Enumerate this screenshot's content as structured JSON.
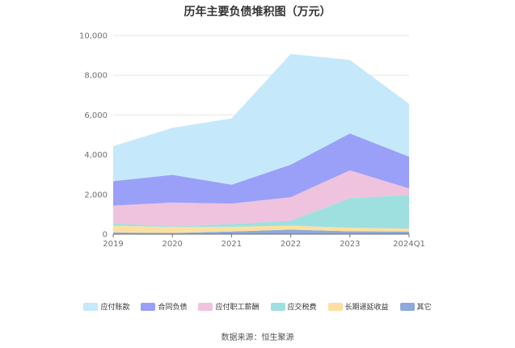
{
  "chart_data": {
    "type": "area",
    "stacked": true,
    "title": "历年主要负债堆积图（万元）",
    "categories": [
      "2019",
      "2020",
      "2021",
      "2022",
      "2023",
      "2024Q1"
    ],
    "ylim": [
      0,
      10000
    ],
    "yticks": [
      0,
      2000,
      4000,
      6000,
      8000,
      10000
    ],
    "ytick_labels": [
      "0",
      "2,000",
      "4,000",
      "6,000",
      "8,000",
      "10,000"
    ],
    "grid": true,
    "legend_position": "bottom",
    "series": [
      {
        "name": "其它",
        "color": "#8eaadb",
        "values": [
          80,
          60,
          130,
          230,
          140,
          130
        ]
      },
      {
        "name": "长期递延收益",
        "color": "#fde0a0",
        "values": [
          340,
          300,
          240,
          200,
          180,
          150
        ]
      },
      {
        "name": "应交税费",
        "color": "#9ee0df",
        "values": [
          120,
          30,
          140,
          250,
          1490,
          1690
        ]
      },
      {
        "name": "应付职工薪酬",
        "color": "#efc3dd",
        "values": [
          900,
          1200,
          1030,
          1180,
          1400,
          330
        ]
      },
      {
        "name": "合同负债",
        "color": "#9aa0f8",
        "values": [
          1230,
          1400,
          950,
          1640,
          1860,
          1600
        ]
      },
      {
        "name": "应付账款",
        "color": "#c5e9fb",
        "values": [
          1760,
          2360,
          3340,
          5570,
          3700,
          2660
        ]
      }
    ],
    "source": "数据来源：恒生聚源"
  }
}
